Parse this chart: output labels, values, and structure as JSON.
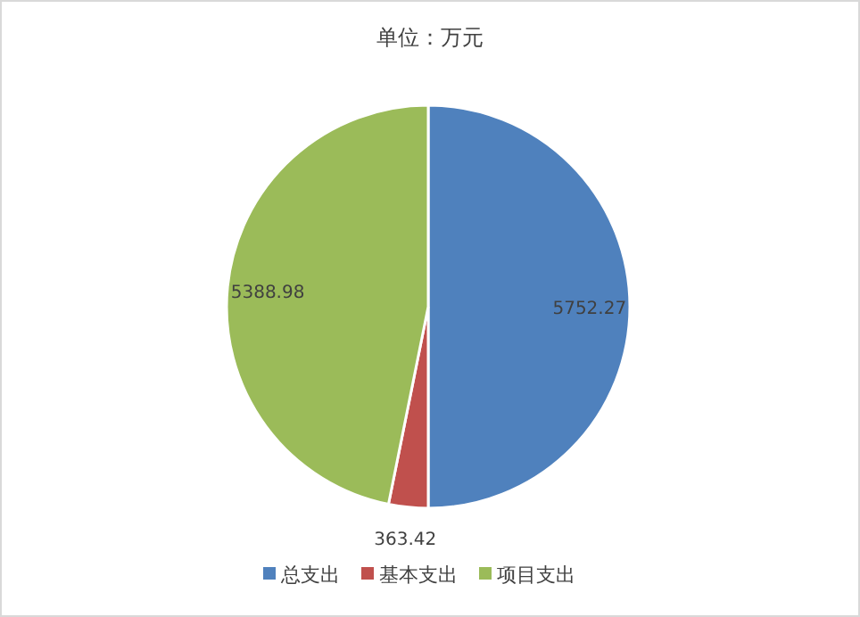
{
  "chart_data": {
    "type": "pie",
    "title": "单位：万元",
    "categories": [
      "总支出",
      "基本支出",
      "项目支出"
    ],
    "values": [
      5752.27,
      363.42,
      5388.98
    ],
    "colors": [
      "#4f81bd",
      "#c0504d",
      "#9bbb59"
    ],
    "data_labels": true,
    "legend": "bottom"
  }
}
